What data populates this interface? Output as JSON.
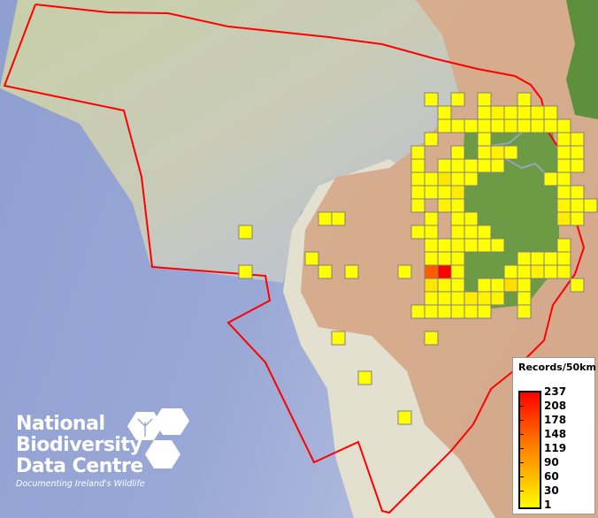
{
  "legend": {
    "title": "Records/50km",
    "labels": [
      "237",
      "208",
      "178",
      "148",
      "119",
      "90",
      "60",
      "30",
      "1"
    ],
    "color_low": "#ffff00",
    "color_high": "#ff0000"
  },
  "logo": {
    "line1": "National",
    "line2": "Biodiversity",
    "line3": "Data Centre",
    "tagline": "Documenting Ireland's Wildlife"
  },
  "colors": {
    "boundary": "#ff0000",
    "cell_border": "#808080"
  },
  "grid_cells": [
    {
      "col": 1,
      "row": 0,
      "records": 1
    },
    {
      "col": 3,
      "row": 0,
      "records": 1
    },
    {
      "col": 5,
      "row": 0,
      "records": 1
    },
    {
      "col": 8,
      "row": 0,
      "records": 1
    },
    {
      "col": 2,
      "row": 1,
      "records": 1
    },
    {
      "col": 5,
      "row": 1,
      "records": 1
    },
    {
      "col": 6,
      "row": 1,
      "records": 12
    },
    {
      "col": 7,
      "row": 1,
      "records": 1
    },
    {
      "col": 8,
      "row": 1,
      "records": 1
    },
    {
      "col": 9,
      "row": 1,
      "records": 4
    },
    {
      "col": 10,
      "row": 1,
      "records": 1
    },
    {
      "col": 2,
      "row": 2,
      "records": 1
    },
    {
      "col": 3,
      "row": 2,
      "records": 1
    },
    {
      "col": 4,
      "row": 2,
      "records": 1
    },
    {
      "col": 5,
      "row": 2,
      "records": 1
    },
    {
      "col": 6,
      "row": 2,
      "records": 1
    },
    {
      "col": 7,
      "row": 2,
      "records": 6
    },
    {
      "col": 8,
      "row": 2,
      "records": 1
    },
    {
      "col": 9,
      "row": 2,
      "records": 1
    },
    {
      "col": 10,
      "row": 2,
      "records": 1
    },
    {
      "col": 11,
      "row": 2,
      "records": 1
    },
    {
      "col": 1,
      "row": 3,
      "records": 1
    },
    {
      "col": 5,
      "row": 3,
      "records": 1
    },
    {
      "col": 11,
      "row": 3,
      "records": 1
    },
    {
      "col": 12,
      "row": 3,
      "records": 4
    },
    {
      "col": 0,
      "row": 4,
      "records": 1
    },
    {
      "col": 3,
      "row": 4,
      "records": 1
    },
    {
      "col": 5,
      "row": 4,
      "records": 4
    },
    {
      "col": 6,
      "row": 4,
      "records": 14
    },
    {
      "col": 7,
      "row": 4,
      "records": 1
    },
    {
      "col": 11,
      "row": 4,
      "records": 1
    },
    {
      "col": 12,
      "row": 4,
      "records": 1
    },
    {
      "col": 0,
      "row": 5,
      "records": 1
    },
    {
      "col": 2,
      "row": 5,
      "records": 1
    },
    {
      "col": 3,
      "row": 5,
      "records": 1
    },
    {
      "col": 4,
      "row": 5,
      "records": 1
    },
    {
      "col": 5,
      "row": 5,
      "records": 1
    },
    {
      "col": 6,
      "row": 5,
      "records": 1
    },
    {
      "col": 11,
      "row": 5,
      "records": 1
    },
    {
      "col": 12,
      "row": 5,
      "records": 1
    },
    {
      "col": 0,
      "row": 6,
      "records": 1
    },
    {
      "col": 1,
      "row": 6,
      "records": 1
    },
    {
      "col": 2,
      "row": 6,
      "records": 25
    },
    {
      "col": 3,
      "row": 6,
      "records": 1
    },
    {
      "col": 4,
      "row": 6,
      "records": 1
    },
    {
      "col": 10,
      "row": 6,
      "records": 1
    },
    {
      "col": 11,
      "row": 6,
      "records": 1
    },
    {
      "col": 0,
      "row": 7,
      "records": 1
    },
    {
      "col": 1,
      "row": 7,
      "records": 1
    },
    {
      "col": 2,
      "row": 7,
      "records": 4
    },
    {
      "col": 3,
      "row": 7,
      "records": 18
    },
    {
      "col": 11,
      "row": 7,
      "records": 1
    },
    {
      "col": 12,
      "row": 7,
      "records": 1
    },
    {
      "col": 0,
      "row": 8,
      "records": 1
    },
    {
      "col": 2,
      "row": 8,
      "records": 12
    },
    {
      "col": 3,
      "row": 8,
      "records": 1
    },
    {
      "col": 11,
      "row": 8,
      "records": 10
    },
    {
      "col": 12,
      "row": 8,
      "records": 1
    },
    {
      "col": 13,
      "row": 8,
      "records": 1
    },
    {
      "col": 1,
      "row": 9,
      "records": 1
    },
    {
      "col": 3,
      "row": 9,
      "records": 1
    },
    {
      "col": 4,
      "row": 9,
      "records": 4
    },
    {
      "col": 11,
      "row": 9,
      "records": 18
    },
    {
      "col": 12,
      "row": 9,
      "records": 1
    },
    {
      "col": 0,
      "row": 10,
      "records": 1
    },
    {
      "col": 1,
      "row": 10,
      "records": 1
    },
    {
      "col": 3,
      "row": 10,
      "records": 4
    },
    {
      "col": 4,
      "row": 10,
      "records": 1
    },
    {
      "col": 5,
      "row": 10,
      "records": 1
    },
    {
      "col": 1,
      "row": 11,
      "records": 1
    },
    {
      "col": 2,
      "row": 11,
      "records": 1
    },
    {
      "col": 3,
      "row": 11,
      "records": 4
    },
    {
      "col": 4,
      "row": 11,
      "records": 1
    },
    {
      "col": 5,
      "row": 11,
      "records": 1
    },
    {
      "col": 6,
      "row": 11,
      "records": 1
    },
    {
      "col": 11,
      "row": 11,
      "records": 1
    },
    {
      "col": 1,
      "row": 12,
      "records": 1
    },
    {
      "col": 2,
      "row": 12,
      "records": 4
    },
    {
      "col": 3,
      "row": 12,
      "records": 4
    },
    {
      "col": 8,
      "row": 12,
      "records": 1
    },
    {
      "col": 9,
      "row": 12,
      "records": 1
    },
    {
      "col": 10,
      "row": 12,
      "records": 1
    },
    {
      "col": 11,
      "row": 12,
      "records": 1
    },
    {
      "col": -1,
      "row": 13,
      "records": 1
    },
    {
      "col": 1,
      "row": 13,
      "records": 150
    },
    {
      "col": 2,
      "row": 13,
      "records": 237
    },
    {
      "col": 3,
      "row": 13,
      "records": 4
    },
    {
      "col": 7,
      "row": 13,
      "records": 1
    },
    {
      "col": 8,
      "row": 13,
      "records": 4
    },
    {
      "col": 9,
      "row": 13,
      "records": 14
    },
    {
      "col": 10,
      "row": 13,
      "records": 1
    },
    {
      "col": 11,
      "row": 13,
      "records": 4
    },
    {
      "col": 1,
      "row": 14,
      "records": 25
    },
    {
      "col": 2,
      "row": 14,
      "records": 6
    },
    {
      "col": 3,
      "row": 14,
      "records": 1
    },
    {
      "col": 5,
      "row": 14,
      "records": 1
    },
    {
      "col": 6,
      "row": 14,
      "records": 1
    },
    {
      "col": 7,
      "row": 14,
      "records": 30
    },
    {
      "col": 8,
      "row": 14,
      "records": 1
    },
    {
      "col": 12,
      "row": 14,
      "records": 1
    },
    {
      "col": 1,
      "row": 15,
      "records": 4
    },
    {
      "col": 2,
      "row": 15,
      "records": 4
    },
    {
      "col": 3,
      "row": 15,
      "records": 4
    },
    {
      "col": 4,
      "row": 15,
      "records": 18
    },
    {
      "col": 5,
      "row": 15,
      "records": 12
    },
    {
      "col": 6,
      "row": 15,
      "records": 12
    },
    {
      "col": 8,
      "row": 15,
      "records": 1
    },
    {
      "col": 0,
      "row": 16,
      "records": 1
    },
    {
      "col": 1,
      "row": 16,
      "records": 1
    },
    {
      "col": 2,
      "row": 16,
      "records": 1
    },
    {
      "col": 3,
      "row": 16,
      "records": 4
    },
    {
      "col": 4,
      "row": 16,
      "records": 4
    },
    {
      "col": 5,
      "row": 16,
      "records": 1
    },
    {
      "col": 8,
      "row": 16,
      "records": 1
    },
    {
      "col": -13,
      "row": 10,
      "records": 1
    },
    {
      "col": -13,
      "row": 13,
      "records": 1
    },
    {
      "col": -8,
      "row": 12,
      "records": 1
    },
    {
      "col": -7,
      "row": 9,
      "records": 1
    },
    {
      "col": -6,
      "row": 9,
      "records": 1
    },
    {
      "col": -7,
      "row": 13,
      "records": 1
    },
    {
      "col": -5,
      "row": 13,
      "records": 1
    },
    {
      "col": -6,
      "row": 18,
      "records": 1
    },
    {
      "col": 1,
      "row": 18,
      "records": 1
    },
    {
      "col": -4,
      "row": 21,
      "records": 1
    },
    {
      "col": -1,
      "row": 24,
      "records": 1
    }
  ]
}
